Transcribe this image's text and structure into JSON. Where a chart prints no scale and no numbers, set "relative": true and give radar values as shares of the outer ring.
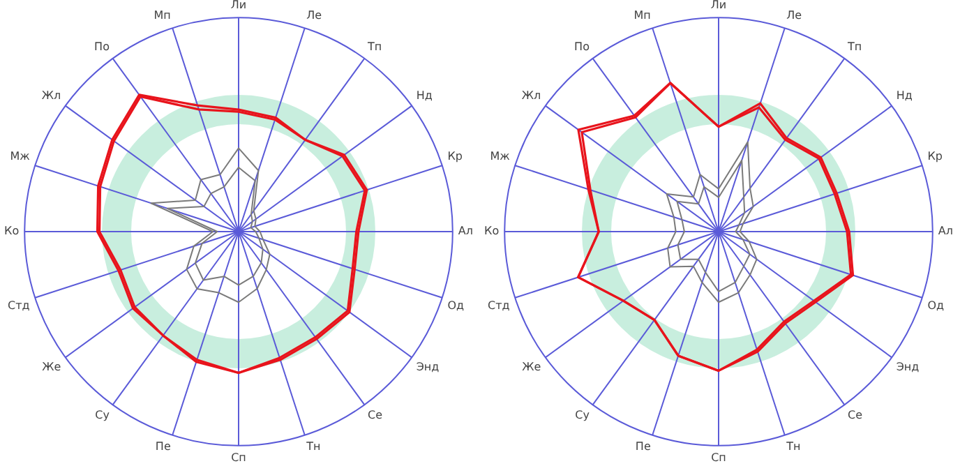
{
  "chart_data": [
    {
      "type": "radar",
      "relative": true,
      "legend": false,
      "marker": "none",
      "line_style": "solid",
      "categories": [
        "Ли",
        "Ле",
        "Тп",
        "Нд",
        "Кр",
        "Ал",
        "Од",
        "Энд",
        "Се",
        "Тн",
        "Сп",
        "Пе",
        "Су",
        "Же",
        "Стд",
        "Ко",
        "Мж",
        "Жл",
        "По",
        "Мп"
      ],
      "series": [
        {
          "color": "#e8141c",
          "values": [
            0.57,
            0.56,
            0.53,
            0.61,
            0.63,
            0.56,
            0.57,
            0.64,
            0.62,
            0.63,
            0.66,
            0.64,
            0.6,
            0.61,
            0.59,
            0.66,
            0.69,
            0.73,
            0.79,
            0.62
          ]
        },
        {
          "color": "#e8141c",
          "values": [
            0.56,
            0.55,
            0.53,
            0.6,
            0.62,
            0.55,
            0.56,
            0.63,
            0.61,
            0.62,
            0.66,
            0.63,
            0.6,
            0.6,
            0.58,
            0.65,
            0.68,
            0.72,
            0.78,
            0.6
          ]
        },
        {
          "color": "#7a7a7a",
          "values": [
            0.39,
            0.3,
            0.12,
            0.1,
            0.08,
            0.1,
            0.12,
            0.18,
            0.22,
            0.28,
            0.33,
            0.3,
            0.33,
            0.3,
            0.22,
            0.12,
            0.43,
            0.25,
            0.3,
            0.28
          ]
        },
        {
          "color": "#7a7a7a",
          "values": [
            0.3,
            0.25,
            0.1,
            0.08,
            0.06,
            0.08,
            0.1,
            0.14,
            0.18,
            0.22,
            0.25,
            0.22,
            0.28,
            0.25,
            0.18,
            0.1,
            0.35,
            0.2,
            0.22,
            0.22
          ]
        }
      ]
    },
    {
      "type": "radar",
      "relative": true,
      "legend": false,
      "marker": "none",
      "line_style": "solid",
      "categories": [
        "Ли",
        "Ле",
        "Тп",
        "Нд",
        "Кр",
        "Ал",
        "Од",
        "Энд",
        "Се",
        "Тн",
        "Сп",
        "Пе",
        "Су",
        "Же",
        "Стд",
        "Ко",
        "Мж",
        "Жл",
        "По",
        "Мп"
      ],
      "series": [
        {
          "color": "#e8141c",
          "values": [
            0.49,
            0.63,
            0.54,
            0.59,
            0.58,
            0.61,
            0.66,
            0.56,
            0.53,
            0.59,
            0.65,
            0.61,
            0.51,
            0.55,
            0.69,
            0.56,
            0.64,
            0.81,
            0.67,
            0.73
          ]
        },
        {
          "color": "#e8141c",
          "values": [
            0.49,
            0.61,
            0.53,
            0.58,
            0.57,
            0.6,
            0.65,
            0.55,
            0.52,
            0.58,
            0.65,
            0.61,
            0.51,
            0.55,
            0.69,
            0.56,
            0.63,
            0.79,
            0.66,
            0.73
          ]
        },
        {
          "color": "#7a7a7a",
          "values": [
            0.2,
            0.44,
            0.25,
            0.2,
            0.12,
            0.1,
            0.15,
            0.22,
            0.25,
            0.3,
            0.33,
            0.25,
            0.2,
            0.28,
            0.25,
            0.2,
            0.22,
            0.3,
            0.2,
            0.28
          ]
        },
        {
          "color": "#7a7a7a",
          "values": [
            0.16,
            0.35,
            0.2,
            0.15,
            0.1,
            0.08,
            0.12,
            0.18,
            0.2,
            0.25,
            0.28,
            0.2,
            0.16,
            0.22,
            0.2,
            0.16,
            0.18,
            0.24,
            0.16,
            0.22
          ]
        }
      ]
    }
  ]
}
